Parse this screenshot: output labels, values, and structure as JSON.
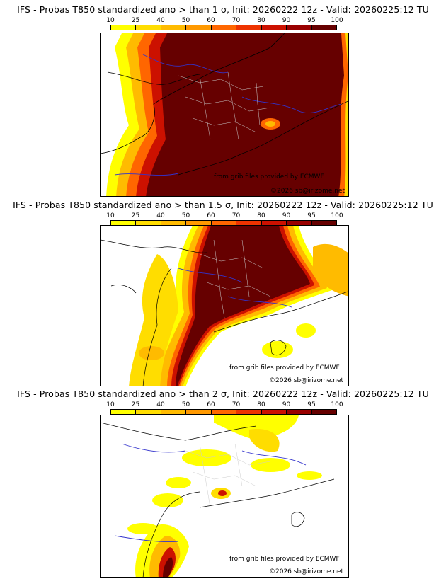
{
  "colors": {
    "bins": [
      "#ffff00",
      "#ffdd00",
      "#ffbb00",
      "#ff9900",
      "#ff6600",
      "#ee3300",
      "#cc1100",
      "#990000",
      "#660000"
    ],
    "border": "#000000",
    "rivers": "#3333cc",
    "admin": "#cccccc"
  },
  "colorbar": {
    "ticks": [
      "10",
      "25",
      "40",
      "50",
      "60",
      "70",
      "80",
      "90",
      "95",
      "100"
    ]
  },
  "panels": [
    {
      "title": "IFS - Probas T850  standardized ano > than 1 σ, Init: 20260222 12z - Valid: 20260225:12 TU",
      "credit_source": "from grib files provided by ECMWF",
      "credit_copyright": "©2026 sb@irizome.net"
    },
    {
      "title": "IFS - Probas T850  standardized ano > than 1.5 σ, Init: 20260222 12z - Valid: 20260225:12 TU",
      "credit_source": "from grib files provided by ECMWF",
      "credit_copyright": "©2026 sb@irizome.net"
    },
    {
      "title": "IFS - Probas T850  standardized ano > than 2 σ, Init: 20260222 12z - Valid: 20260225:12 TU",
      "credit_source": "from grib files provided by ECMWF",
      "credit_copyright": "©2026 sb@irizome.net"
    }
  ]
}
